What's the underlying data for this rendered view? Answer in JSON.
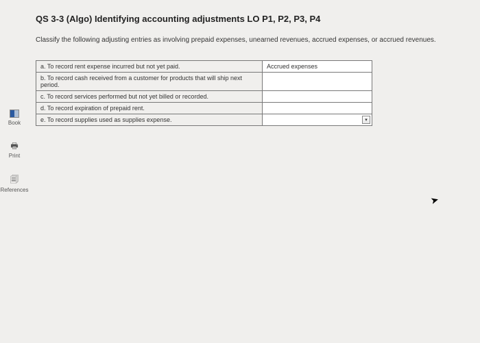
{
  "sidebar": {
    "items": [
      {
        "label": "Book"
      },
      {
        "label": "Print"
      },
      {
        "label": "References"
      }
    ]
  },
  "question": {
    "title": "QS 3-3 (Algo) Identifying accounting adjustments LO P1, P2, P3, P4",
    "instruction": "Classify the following adjusting entries as involving prepaid expenses, unearned revenues, accrued expenses, or accrued revenues.",
    "rows": [
      {
        "desc": "a. To record rent expense incurred but not yet paid.",
        "answer": "Accrued expenses",
        "show_arrow": false
      },
      {
        "desc": "b. To record cash received from a customer for products that will ship next period.",
        "answer": "",
        "show_arrow": false
      },
      {
        "desc": "c. To record services performed but not yet billed or recorded.",
        "answer": "",
        "show_arrow": false
      },
      {
        "desc": "d. To record expiration of prepaid rent.",
        "answer": "",
        "show_arrow": false
      },
      {
        "desc": "e. To record supplies used as supplies expense.",
        "answer": "",
        "show_arrow": true
      }
    ]
  },
  "colors": {
    "page_bg": "#f0efed",
    "border": "#777777",
    "text": "#333333"
  }
}
